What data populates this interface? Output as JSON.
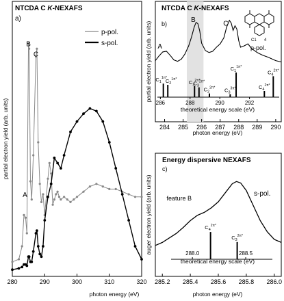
{
  "chart_data": [
    {
      "id": "a",
      "type": "line",
      "title": "NTCDA C K-NEXAFS",
      "title_main": "NTCDA C ",
      "title_italic": "K",
      "title_rest": "-NEXAFS",
      "panel_label": "a)",
      "xlabel": "photon energy (eV)",
      "ylabel": "partial electron yield (arb. units)",
      "xlim": [
        280,
        320
      ],
      "ylim": [
        0,
        1
      ],
      "xticks": [
        280,
        290,
        300,
        310,
        320
      ],
      "xtick_labels": [
        "280",
        "290",
        "300",
        "310",
        "320"
      ],
      "legend_position": "top-right",
      "annotations": [
        {
          "text": "A",
          "x": 283.9,
          "y": 0.29
        },
        {
          "text": "B",
          "x": 285.0,
          "y": 0.87
        },
        {
          "text": "C",
          "x": 287.3,
          "y": 0.83
        }
      ],
      "series": [
        {
          "name": "p-pol.",
          "color": "#888888",
          "x": [
            280,
            282,
            283,
            283.6,
            284.1,
            284.5,
            285.0,
            285.2,
            285.6,
            286.0,
            286.5,
            287.3,
            287.6,
            288.0,
            288.5,
            289.0,
            289.5,
            290,
            291,
            291.5,
            292,
            292.5,
            293,
            293.5,
            294,
            294.5,
            295,
            296,
            297,
            298,
            299,
            300,
            302,
            304,
            306,
            308,
            310,
            312,
            314,
            316,
            318,
            320
          ],
          "y": [
            0.04,
            0.05,
            0.1,
            0.22,
            0.21,
            0.15,
            0.88,
            0.86,
            0.35,
            0.28,
            0.45,
            0.83,
            0.86,
            0.5,
            0.34,
            0.27,
            0.3,
            0.22,
            0.36,
            0.42,
            0.38,
            0.26,
            0.28,
            0.3,
            0.31,
            0.29,
            0.28,
            0.29,
            0.28,
            0.27,
            0.28,
            0.29,
            0.31,
            0.33,
            0.34,
            0.33,
            0.32,
            0.32,
            0.31,
            0.3,
            0.29,
            0.29
          ]
        },
        {
          "name": "s-pol.",
          "color": "#000000",
          "x": [
            280,
            282,
            283,
            283.6,
            284.1,
            284.5,
            285.0,
            285.2,
            285.6,
            286.0,
            286.5,
            287.3,
            287.6,
            288.0,
            288.5,
            289.0,
            289.5,
            290,
            291,
            292,
            293,
            294,
            295,
            296,
            298,
            300,
            302,
            304,
            306,
            308,
            310,
            312,
            314,
            316,
            318,
            320
          ],
          "y": [
            0.01,
            0.015,
            0.02,
            0.03,
            0.03,
            0.025,
            0.06,
            0.06,
            0.04,
            0.04,
            0.08,
            0.15,
            0.16,
            0.1,
            0.07,
            0.06,
            0.1,
            0.2,
            0.29,
            0.34,
            0.44,
            0.42,
            0.4,
            0.45,
            0.54,
            0.58,
            0.61,
            0.63,
            0.62,
            0.58,
            0.5,
            0.4,
            0.3,
            0.2,
            0.1,
            0.05
          ]
        }
      ]
    },
    {
      "id": "b",
      "type": "line",
      "title": "NTCDA C K-NEXAFS",
      "title_main": "NTCDA C ",
      "title_italic": "K",
      "title_rest": "-NEXAFS",
      "panel_label": "b)",
      "xlabel": "photon energy (eV)",
      "ylabel": "partial electron yield (arb. units)",
      "xlim": [
        283.5,
        290.3
      ],
      "ylim": [
        0,
        1
      ],
      "xticks": [
        284,
        285,
        286,
        287,
        288,
        289,
        290
      ],
      "xtick_labels": [
        "284",
        "285",
        "286",
        "287",
        "288",
        "289",
        "290"
      ],
      "highlight_band": [
        285.2,
        286.1
      ],
      "series_label": "p-pol.",
      "annotations": [
        {
          "text": "A",
          "x": 283.75,
          "y": 0.48
        },
        {
          "text": "B",
          "x": 285.55,
          "y": 0.88
        },
        {
          "text": "C",
          "x": 287.3,
          "y": 0.82
        }
      ],
      "series": [
        {
          "name": "p-pol.",
          "x": [
            283.5,
            283.7,
            283.9,
            284.1,
            284.3,
            284.5,
            284.7,
            284.9,
            285.1,
            285.3,
            285.45,
            285.6,
            285.7,
            285.8,
            285.9,
            286.0,
            286.2,
            286.4,
            286.6,
            286.8,
            287.0,
            287.2,
            287.35,
            287.5,
            287.6,
            287.7,
            287.8,
            287.9,
            288.0,
            288.1,
            288.3,
            288.5,
            288.7,
            289.0,
            289.3,
            289.6,
            290.0,
            290.3
          ],
          "y": [
            0.3,
            0.37,
            0.43,
            0.44,
            0.38,
            0.31,
            0.29,
            0.32,
            0.4,
            0.52,
            0.65,
            0.8,
            0.87,
            0.85,
            0.74,
            0.56,
            0.45,
            0.42,
            0.44,
            0.5,
            0.55,
            0.64,
            0.8,
            0.9,
            0.86,
            0.75,
            0.82,
            0.77,
            0.6,
            0.5,
            0.52,
            0.55,
            0.48,
            0.42,
            0.38,
            0.35,
            0.3,
            0.28
          ]
        }
      ],
      "inner_axis": {
        "label": "theoretical energy scale (eV)",
        "xlim": [
          285.8,
          294
        ],
        "xticks": [
          286,
          288,
          290,
          292
        ],
        "xtick_labels": [
          "286",
          "288",
          "290",
          "292"
        ],
        "sticks": [
          {
            "label": "C1",
            "sup": "1π*",
            "x": 286.2,
            "h": 0.55
          },
          {
            "label": "C2",
            "sup": "1π*",
            "x": 286.5,
            "h": 0.5
          },
          {
            "label": "C2",
            "sup": "2π*",
            "x": 288.3,
            "h": 0.45
          },
          {
            "label": "C3",
            "sup": "2π*",
            "x": 288.6,
            "h": 0.4
          },
          {
            "label": "C2",
            "sup": "2π*",
            "x": 289.3,
            "h": 0.15
          },
          {
            "label": "C3",
            "sup": "3π*",
            "x": 290.7,
            "h": 0.12
          },
          {
            "label": "C1",
            "sup": "1π*",
            "x": 291.1,
            "h": 1.0
          },
          {
            "label": "C4",
            "sup": "2π*",
            "x": 293.0,
            "h": 0.25
          },
          {
            "label": "C4",
            "sup": "2π*",
            "x": 293.6,
            "h": 0.85
          }
        ]
      }
    },
    {
      "id": "c",
      "type": "line",
      "title": "Energy dispersive NEXAFS",
      "panel_label": "c)",
      "xlabel": "photon energy (eV)",
      "ylabel": "auger electron yield (arb. units)",
      "xlim": [
        285.15,
        286.05
      ],
      "ylim": [
        0,
        1
      ],
      "xticks": [
        285.2,
        285.4,
        285.6,
        285.8,
        286.0
      ],
      "xtick_labels": [
        "285.2",
        "285.4",
        "285.6",
        "285.8",
        "286.0"
      ],
      "series_label": "s-pol.",
      "annotations": [
        {
          "text": "feature B",
          "x": 285.32,
          "y": 0.72
        }
      ],
      "series": [
        {
          "name": "s-pol.",
          "x": [
            285.15,
            285.2,
            285.25,
            285.3,
            285.35,
            285.4,
            285.45,
            285.5,
            285.55,
            285.6,
            285.65,
            285.7,
            285.73,
            285.76,
            285.8,
            285.85,
            285.9,
            285.95,
            286.0,
            286.05
          ],
          "y": [
            0.12,
            0.16,
            0.22,
            0.28,
            0.36,
            0.45,
            0.52,
            0.56,
            0.62,
            0.7,
            0.82,
            0.94,
            0.97,
            0.95,
            0.85,
            0.65,
            0.45,
            0.3,
            0.2,
            0.16
          ]
        }
      ],
      "inner_axis": {
        "label": "theoretical energy scale (eV)",
        "xlim": [
          287.8,
          288.75
        ],
        "xticks": [
          288.0,
          288.5
        ],
        "xtick_labels": [
          "288.0",
          "288.5"
        ],
        "sticks": [
          {
            "label": "C4",
            "sup": "2π*",
            "x": 288.17,
            "h": 0.95
          },
          {
            "label": "C3",
            "sup": "2π*",
            "x": 288.42,
            "h": 0.6
          }
        ]
      }
    }
  ]
}
